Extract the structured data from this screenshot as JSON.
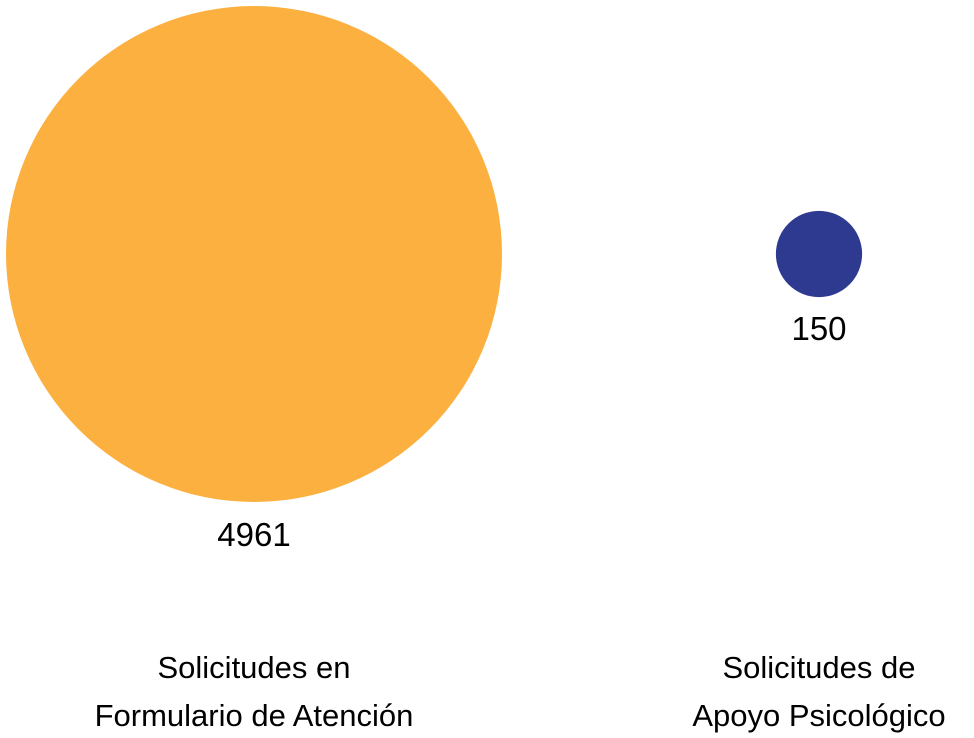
{
  "chart_data": {
    "type": "bubble",
    "title": "",
    "categories": [
      "Solicitudes en Formulario de Atención",
      "Solicitudes de Apoyo Psicológico"
    ],
    "category_lines": [
      [
        "Solicitudes en",
        "Formulario de Atención"
      ],
      [
        "Solicitudes de",
        "Apoyo Psicológico"
      ]
    ],
    "values": [
      4961,
      150
    ],
    "value_labels": [
      "4961",
      "150"
    ],
    "colors": [
      "#FBB040",
      "#2E3A8F"
    ]
  }
}
